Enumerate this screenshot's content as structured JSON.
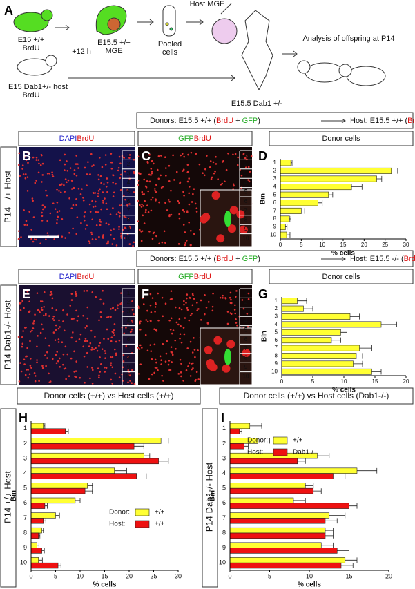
{
  "panel_labels": [
    "A",
    "B",
    "C",
    "D",
    "E",
    "F",
    "G",
    "H",
    "I"
  ],
  "schematic": {
    "donor": "E15 +/+",
    "donor_label": "BrdU",
    "interval": "+12 h",
    "mge": [
      "E15.5 +/+",
      "MGE"
    ],
    "pooled": [
      "Pooled",
      "cells"
    ],
    "host_mge": "Host MGE",
    "analysis": "Analysis of offspring at P14",
    "host": "E15 Dab1+/- host",
    "host_label": "BrdU",
    "host_embryo": "E15.5 Dab1 +/-",
    "label_color": "#dd1111"
  },
  "rows": [
    {
      "left": [
        {
          "text": "Donors: E15.5 +/+ (",
          "color": "#111111"
        },
        {
          "text": "BrdU",
          "color": "#dd1111"
        },
        {
          "text": " + ",
          "color": "#111111"
        },
        {
          "text": "GFP",
          "color": "#22aa22"
        },
        {
          "text": ")",
          "color": "#111111"
        }
      ],
      "right": [
        {
          "text": "Host: E15.5 +/+ (",
          "color": "#111111"
        },
        {
          "text": "BrdU",
          "color": "#dd1111"
        },
        {
          "text": ")",
          "color": "#111111"
        }
      ],
      "stains": [
        [
          {
            "text": "DAPI",
            "color": "#2222cc"
          },
          {
            "text": "BrdU",
            "color": "#dd1111"
          }
        ],
        [
          {
            "text": "GFP",
            "color": "#22aa22"
          },
          {
            "text": "BrdU",
            "color": "#dd1111"
          }
        ]
      ],
      "side": "P14 +/+ Host"
    },
    {
      "left": [
        {
          "text": "Donors: E15.5 +/+ (",
          "color": "#111111"
        },
        {
          "text": "BrdU",
          "color": "#dd1111"
        },
        {
          "text": " + ",
          "color": "#111111"
        },
        {
          "text": "GFP",
          "color": "#22aa22"
        },
        {
          "text": ")",
          "color": "#111111"
        }
      ],
      "right": [
        {
          "text": "Host: E15.5 -/-  (",
          "color": "#111111"
        },
        {
          "text": "BrdU",
          "color": "#dd1111"
        },
        {
          "text": ")",
          "color": "#111111"
        }
      ],
      "stains": [
        [
          {
            "text": "DAPI",
            "color": "#2222cc"
          },
          {
            "text": "BrdU",
            "color": "#dd1111"
          }
        ],
        [
          {
            "text": "GFP",
            "color": "#22aa22"
          },
          {
            "text": "BrdU",
            "color": "#dd1111"
          }
        ]
      ],
      "side": "P14 Dab1-/- Host"
    }
  ],
  "image_bins": [
    "1",
    "2",
    "3",
    "4",
    "5",
    "6",
    "7",
    "8",
    "9",
    "10"
  ],
  "comparisons": [
    {
      "title": "Donor cells (+/+) vs Host cells (+/+)",
      "side": "P14 +/+ Host"
    },
    {
      "title": "Donor cells (+/+) vs Host cells (Dab1-/-)",
      "side": "P14 Dab1-/- Host"
    }
  ],
  "chart_data": [
    {
      "type": "bar",
      "orientation": "horizontal",
      "title": "Donor cells",
      "ylabel": "Bin",
      "xlabel": "% cells",
      "categories": [
        "1",
        "2",
        "3",
        "4",
        "5",
        "6",
        "7",
        "8",
        "9",
        "10"
      ],
      "series": [
        {
          "color": "#ffff33",
          "values": [
            2.5,
            26.5,
            23,
            17,
            11.5,
            9,
            5,
            2.2,
            1.2,
            1.5
          ],
          "errors": [
            0.3,
            1.5,
            1.2,
            2.5,
            1,
            1,
            0.8,
            0.3,
            0.4,
            0.8
          ]
        }
      ],
      "xlim": [
        0,
        30
      ],
      "xticks": [
        0,
        5,
        10,
        15,
        20,
        25,
        30
      ]
    },
    {
      "type": "bar",
      "orientation": "horizontal",
      "title": "Donor cells",
      "ylabel": "Bin",
      "xlabel": "% cells",
      "categories": [
        "1",
        "2",
        "3",
        "4",
        "5",
        "6",
        "7",
        "8",
        "9",
        "10"
      ],
      "series": [
        {
          "color": "#ffff33",
          "values": [
            2.5,
            3.5,
            11,
            16,
            9.5,
            8,
            12.5,
            12,
            11.5,
            14.5
          ],
          "errors": [
            1.5,
            1.5,
            1.5,
            2.5,
            1,
            1.5,
            2,
            1,
            1.5,
            1.5
          ]
        }
      ],
      "xlim": [
        0,
        20
      ],
      "xticks": [
        0,
        5,
        10,
        15,
        20
      ]
    },
    {
      "type": "bar",
      "orientation": "horizontal",
      "ylabel": "Bin",
      "xlabel": "% cells",
      "categories": [
        "1",
        "2",
        "3",
        "4",
        "5",
        "6",
        "7",
        "8",
        "9",
        "10"
      ],
      "series": [
        {
          "name": "Donor:",
          "legend_label": "+/+",
          "color": "#ffff33",
          "values": [
            2.5,
            26.5,
            23,
            17,
            11.5,
            9,
            5,
            2.2,
            1.2,
            1.5
          ],
          "errors": [
            0.3,
            1.5,
            1.2,
            2.5,
            1,
            1,
            0.8,
            0.3,
            0.4,
            0.8
          ]
        },
        {
          "name": "Host:",
          "legend_label": "+/+",
          "color": "#ee1111",
          "values": [
            7,
            21,
            26,
            21.5,
            11,
            2.8,
            2.5,
            1.5,
            2.2,
            5.5
          ],
          "errors": [
            0.6,
            2,
            2,
            2,
            1.5,
            0.5,
            0.5,
            0.3,
            0.5,
            0.6
          ]
        }
      ],
      "xlim": [
        0,
        30
      ],
      "xticks": [
        0,
        5,
        10,
        15,
        20,
        25,
        30
      ]
    },
    {
      "type": "bar",
      "orientation": "horizontal",
      "ylabel": "Bin",
      "xlabel": "% cells",
      "categories": [
        "1",
        "2",
        "3",
        "4",
        "5",
        "6",
        "7",
        "8",
        "9",
        "10"
      ],
      "series": [
        {
          "name": "Donor:",
          "legend_label": "+/+",
          "color": "#ffff33",
          "values": [
            2.5,
            3.5,
            11,
            16,
            9.5,
            8,
            12.5,
            12,
            11.5,
            14.5
          ],
          "errors": [
            1.5,
            1.5,
            1.5,
            2.5,
            1,
            1.5,
            2,
            1,
            1.5,
            1.5
          ]
        },
        {
          "name": "Host:",
          "legend_label": "Dab1-/-",
          "color": "#ee1111",
          "values": [
            1.2,
            1.8,
            8.5,
            13,
            10.5,
            15,
            12,
            12,
            13.5,
            14
          ],
          "errors": [
            0.3,
            0.5,
            1,
            1.5,
            1,
            1,
            1.5,
            1,
            1.5,
            1.5
          ]
        }
      ],
      "xlim": [
        0,
        20
      ],
      "xticks": [
        0,
        5,
        10,
        15,
        20
      ]
    }
  ]
}
